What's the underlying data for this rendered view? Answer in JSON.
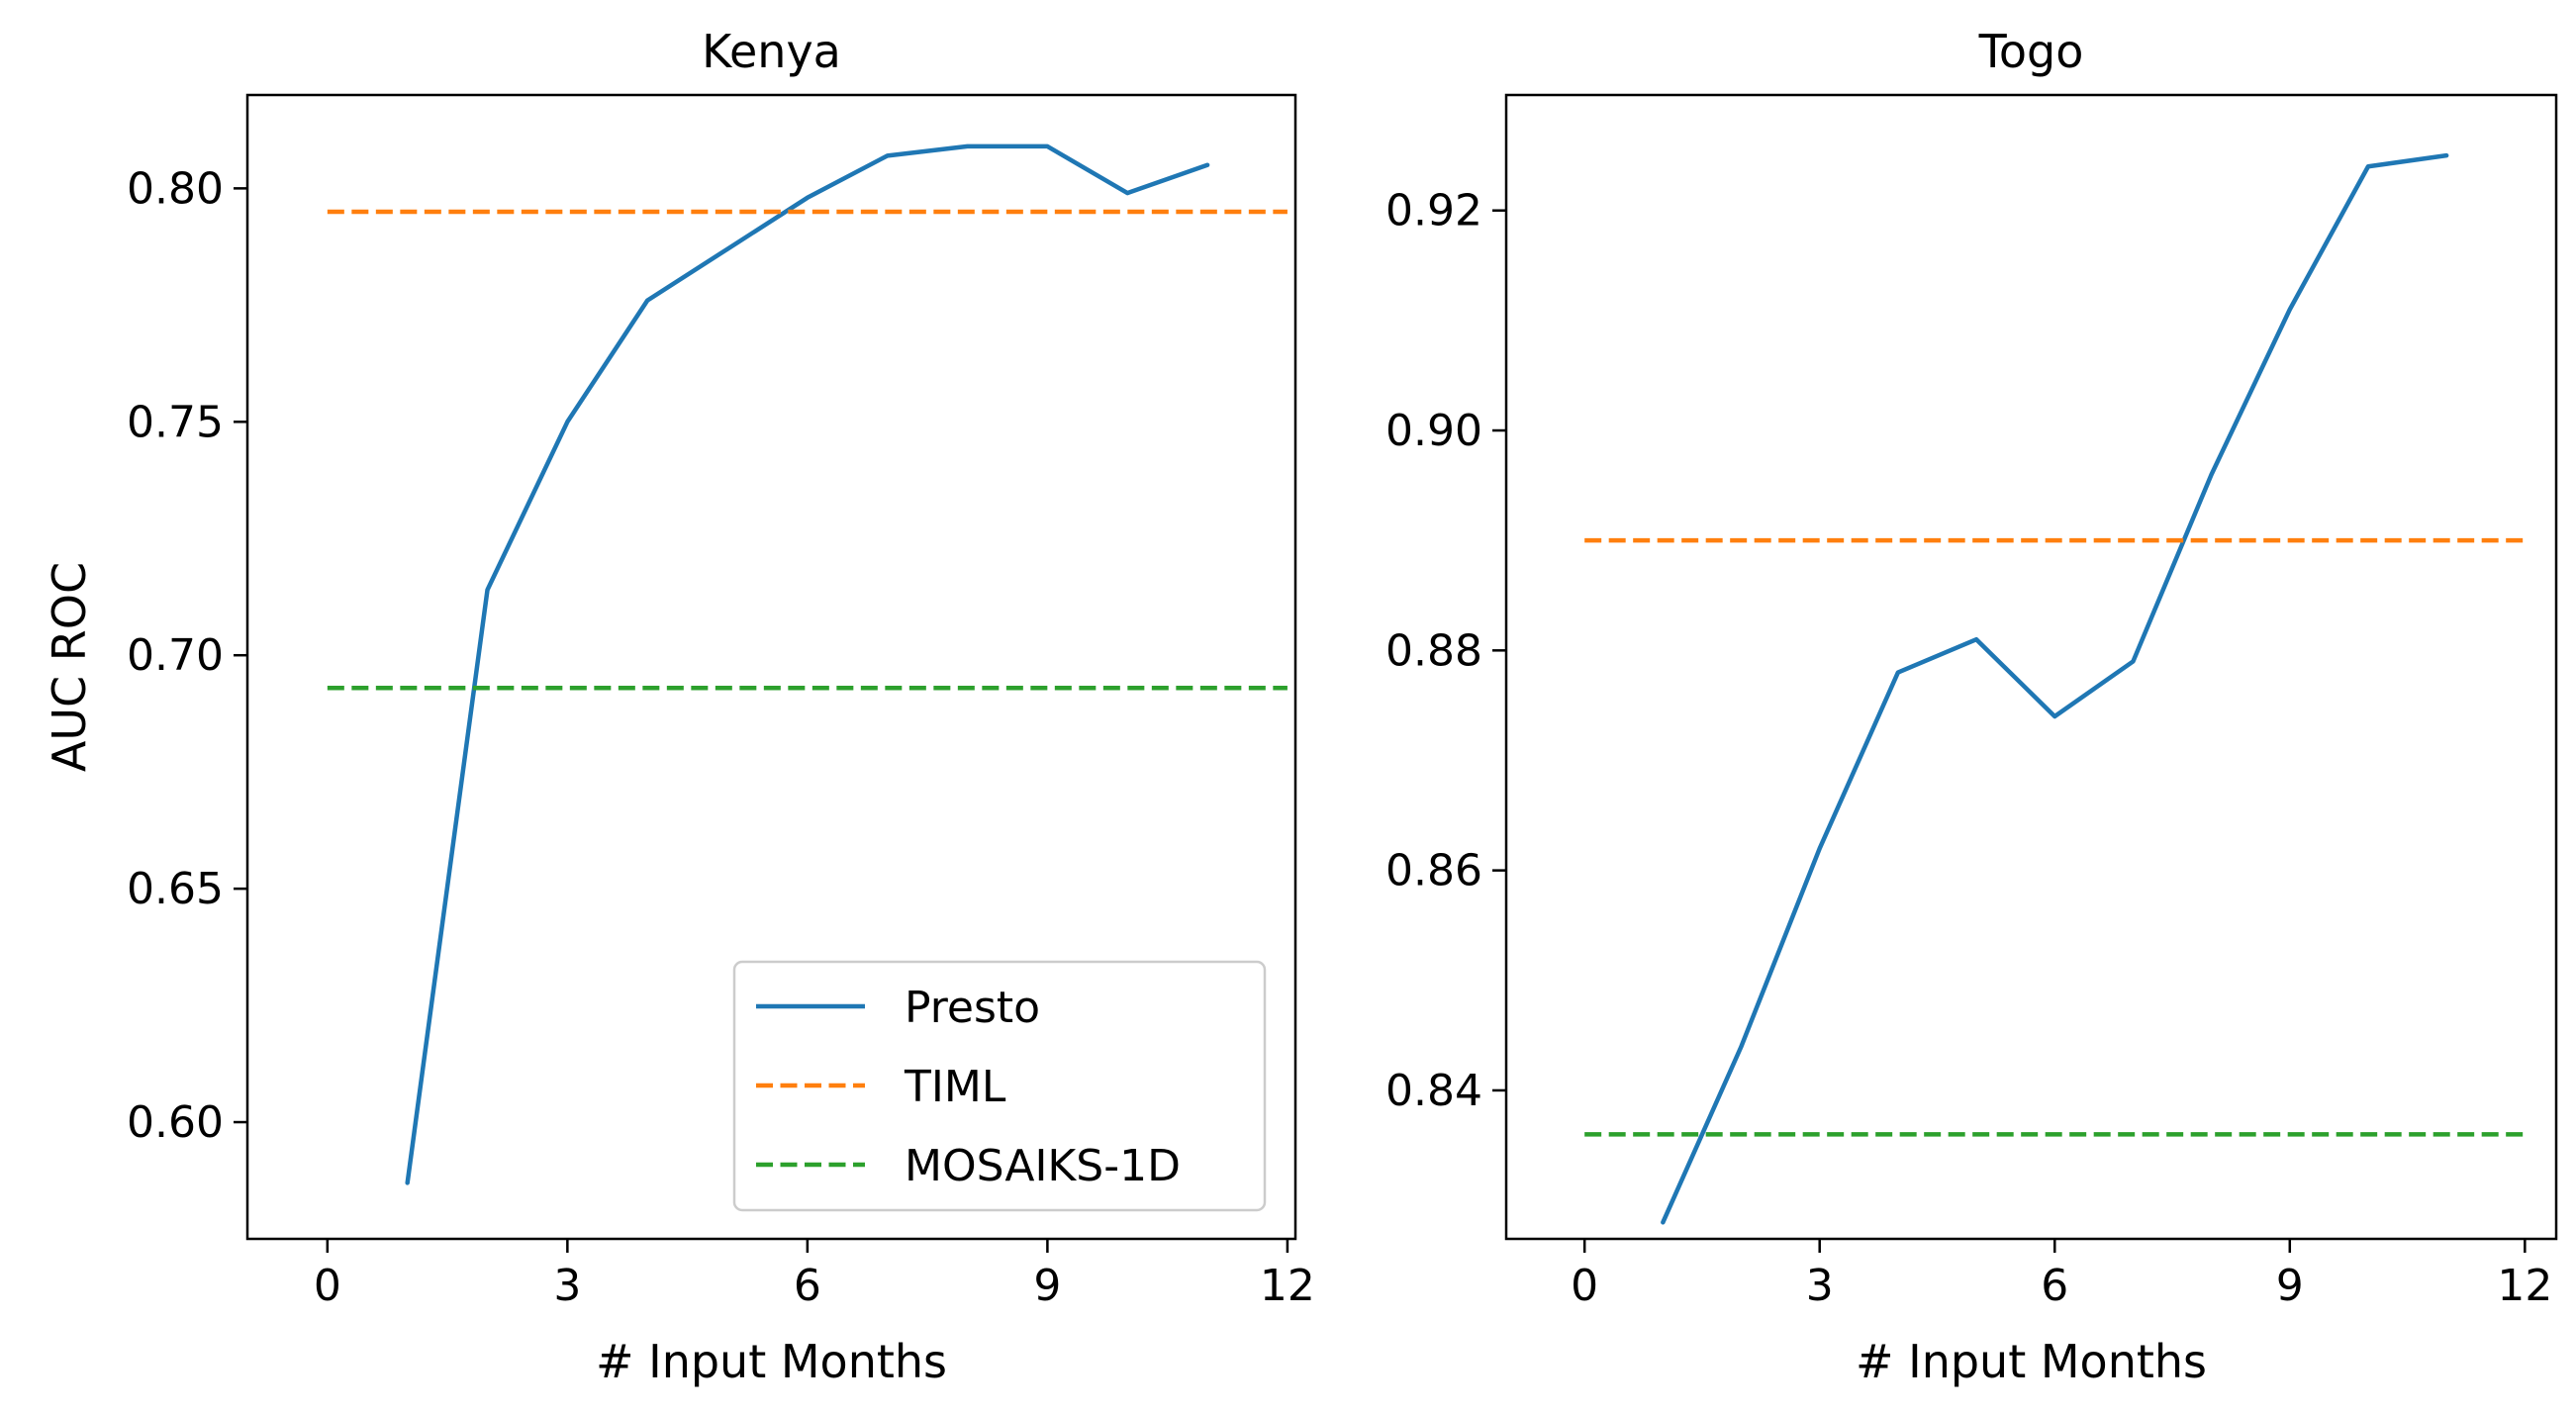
{
  "figure": {
    "type": "line",
    "xlabel": "# Input Months",
    "ylabel": "AUC ROC",
    "legend_position": "lower-right",
    "legend_panel": 0,
    "series_styles": [
      {
        "name": "Presto",
        "color": "#1f77b4",
        "dash": "solid"
      },
      {
        "name": "TIML",
        "color": "#ff7f0e",
        "dash": "dashed"
      },
      {
        "name": "MOSAIKS-1D",
        "color": "#2ca02c",
        "dash": "dashed"
      }
    ]
  },
  "chart_data": [
    {
      "type": "line",
      "title": "Kenya",
      "xlabel": "# Input Months",
      "ylabel": "AUC ROC",
      "xlim": [
        -1,
        12.1
      ],
      "ylim": [
        0.575,
        0.82
      ],
      "xticks": [
        0,
        3,
        6,
        9,
        12
      ],
      "xtick_labels": [
        "0",
        "3",
        "6",
        "9",
        "12"
      ],
      "yticks": [
        0.6,
        0.65,
        0.7,
        0.75,
        0.8
      ],
      "ytick_labels": [
        "0.60",
        "0.65",
        "0.70",
        "0.75",
        "0.80"
      ],
      "series": [
        {
          "name": "Presto",
          "x": [
            1,
            2,
            3,
            4,
            5,
            6,
            7,
            8,
            9,
            10,
            11
          ],
          "y": [
            0.587,
            0.714,
            0.75,
            0.776,
            0.787,
            0.798,
            0.807,
            0.809,
            0.809,
            0.799,
            0.805
          ]
        },
        {
          "name": "TIML",
          "x": [
            0,
            12
          ],
          "y": [
            0.795,
            0.795
          ]
        },
        {
          "name": "MOSAIKS-1D",
          "x": [
            0,
            12
          ],
          "y": [
            0.693,
            0.693
          ]
        }
      ]
    },
    {
      "type": "line",
      "title": "Togo",
      "xlabel": "# Input Months",
      "ylabel": "",
      "xlim": [
        -1,
        12.4
      ],
      "ylim": [
        0.8265,
        0.9305
      ],
      "xticks": [
        0,
        3,
        6,
        9,
        12
      ],
      "xtick_labels": [
        "0",
        "3",
        "6",
        "9",
        "12"
      ],
      "yticks": [
        0.84,
        0.86,
        0.88,
        0.9,
        0.92
      ],
      "ytick_labels": [
        "0.84",
        "0.86",
        "0.88",
        "0.90",
        "0.92"
      ],
      "series": [
        {
          "name": "Presto",
          "x": [
            1,
            2,
            3,
            4,
            5,
            6,
            7,
            8,
            9,
            10,
            11
          ],
          "y": [
            0.828,
            0.844,
            0.862,
            0.878,
            0.881,
            0.874,
            0.879,
            0.896,
            0.911,
            0.924,
            0.925
          ]
        },
        {
          "name": "TIML",
          "x": [
            0,
            12
          ],
          "y": [
            0.89,
            0.89
          ]
        },
        {
          "name": "MOSAIKS-1D",
          "x": [
            0,
            12
          ],
          "y": [
            0.836,
            0.836
          ]
        }
      ]
    }
  ]
}
